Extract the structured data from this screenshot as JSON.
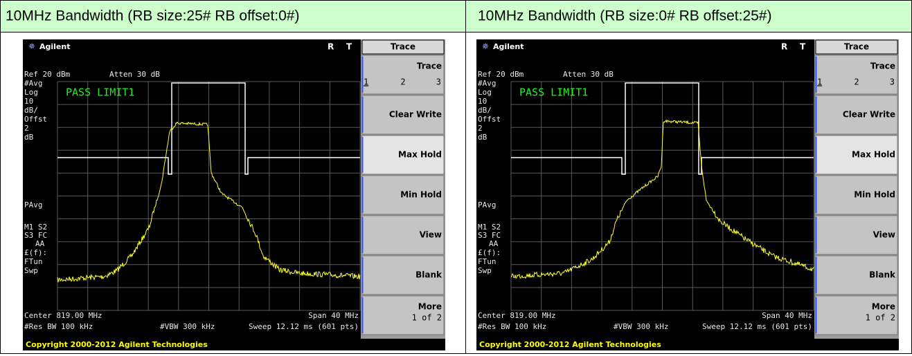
{
  "header": {
    "cells": [
      "10MHz Bandwidth (RB size:25# RB offset:0#)",
      "10MHz Bandwidth (RB size:0# RB offset:25#)"
    ]
  },
  "screens": [
    {
      "brand": "Agilent",
      "status_r": "R",
      "status_t": "T",
      "menu_title": "Trace",
      "trace_selector": [
        "1",
        "2",
        "3"
      ],
      "softkeys": [
        "Trace",
        "Clear Write",
        "Max Hold",
        "Min Hold",
        "View",
        "Blank",
        "More"
      ],
      "more_page": "1 of 2",
      "ref": "Ref 20 dBm",
      "atten": "Atten 30 dB",
      "side_labels": [
        "#Avg",
        "Log",
        "10",
        "dB/",
        "Offst",
        "2",
        "dB",
        "PAvg",
        "M1  S2",
        "S3  FC",
        "AA",
        "£(f):",
        "FTun",
        "Swp"
      ],
      "limit_status": "PASS LIMIT1",
      "center": "Center 819.00 MHz",
      "span": "Span 40 MHz",
      "res_bw": "#Res BW 100 kHz",
      "vbw": "#VBW 300 kHz",
      "sweep": "Sweep 12.12 ms (601 pts)",
      "copyright": "Copyright 2000-2012 Agilent Technologies"
    },
    {
      "brand": "Agilent",
      "status_r": "R",
      "status_t": "T",
      "menu_title": "Trace",
      "trace_selector": [
        "1",
        "2",
        "3"
      ],
      "softkeys": [
        "Trace",
        "Clear Write",
        "Max Hold",
        "Min Hold",
        "View",
        "Blank",
        "More"
      ],
      "more_page": "1 of 2",
      "ref": "Ref 20 dBm",
      "atten": "Atten 30 dB",
      "side_labels": [
        "#Avg",
        "Log",
        "10",
        "dB/",
        "Offst",
        "2",
        "dB",
        "PAvg",
        "M1  S2",
        "S3  FC",
        "AA",
        "£(f):",
        "FTun",
        "Swp"
      ],
      "limit_status": "PASS LIMIT1",
      "center": "Center 819.00 MHz",
      "span": "Span 40 MHz",
      "res_bw": "#Res BW 100 kHz",
      "vbw": "#VBW 300 kHz",
      "sweep": "Sweep 12.12 ms (601 pts)",
      "copyright": "Copyright 2000-2012 Agilent Technologies"
    }
  ]
}
